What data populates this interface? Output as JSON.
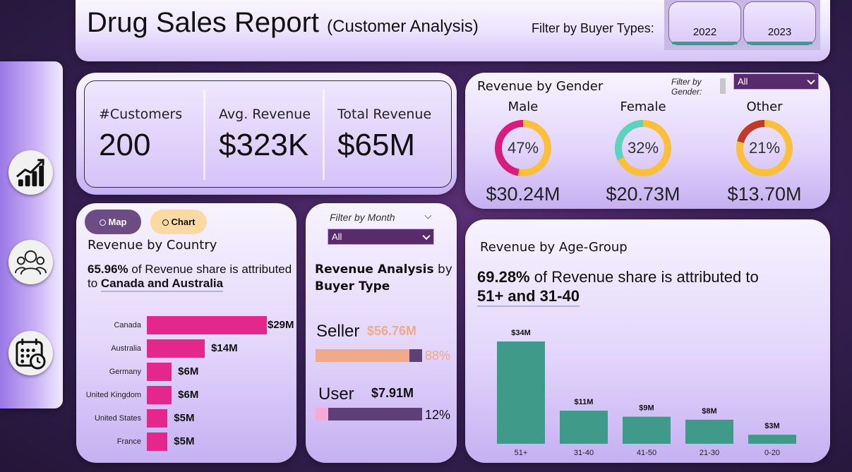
{
  "header": {
    "title": "Drug Sales Report",
    "subtitle": "(Customer Analysis)",
    "filter_label": "Filter by Buyer Types:",
    "year_buttons": [
      "2022",
      "2023"
    ]
  },
  "sidebar": {
    "items": [
      {
        "icon": "growth-chart-icon"
      },
      {
        "icon": "customers-group-icon"
      },
      {
        "icon": "calendar-clock-icon"
      }
    ]
  },
  "kpis": [
    {
      "label": "#Customers",
      "value": "200"
    },
    {
      "label": "Avg. Revenue",
      "value": "$323K"
    },
    {
      "label": "Total Revenue",
      "value": "$65M"
    }
  ],
  "gender": {
    "title": "Revenue by Gender",
    "filter_label": "Filter by Gender:",
    "filter_value": "All",
    "items": [
      {
        "name": "Male",
        "pct_label": "47%",
        "pct": 47,
        "amount": "$30.24M",
        "color": "#d81b7f",
        "rest": "#fbbf3c"
      },
      {
        "name": "Female",
        "pct_label": "32%",
        "pct": 32,
        "amount": "$20.73M",
        "color": "#5fd1c0",
        "rest": "#fbbf3c"
      },
      {
        "name": "Other",
        "pct_label": "21%",
        "pct": 21,
        "amount": "$13.70M",
        "color": "#c0392b",
        "rest": "#fbbf3c"
      }
    ]
  },
  "country": {
    "map_label": "Map",
    "chart_label": "Chart",
    "title": "Revenue by Country",
    "share_pct": "65.96%",
    "share_text": " of Revenue share is attributed to ",
    "share_countries": "Canada and Australia",
    "bar_color": "#e3278c"
  },
  "buyer": {
    "month_label": "Filter by Month",
    "month_value": "All",
    "title_bold": "Revenue Analysis",
    "title_rest": " by",
    "title_bold2": "Buyer Type",
    "types": [
      {
        "name": "Seller",
        "amount": "$56.76M",
        "pct_label": "88%",
        "pct": 88,
        "fill": "#f0a98a",
        "rest": "#5e4078"
      },
      {
        "name": "User",
        "amount": "$7.91M",
        "pct_label": "12%",
        "pct": 12,
        "fill": "#f8a8d8",
        "rest": "#5e4078"
      }
    ]
  },
  "age": {
    "title": "Revenue by Age-Group",
    "share_pct": "69.28%",
    "share_text": " of Revenue share is attributed to",
    "share_groups": "51+ and 31-40"
  },
  "chart_data": [
    {
      "type": "bar",
      "orientation": "horizontal",
      "title": "Revenue by Country",
      "categories": [
        "Canada",
        "Australia",
        "Germany",
        "United Kingdom",
        "United States",
        "France"
      ],
      "values": [
        29,
        14,
        6,
        6,
        5,
        5
      ],
      "labels": [
        "$29M",
        "$14M",
        "$6M",
        "$6M",
        "$5M",
        "$5M"
      ],
      "units": "$M"
    },
    {
      "type": "bar",
      "title": "Revenue by Age-Group",
      "categories": [
        "51+",
        "31-40",
        "41-50",
        "21-30",
        "0-20"
      ],
      "values": [
        34,
        11,
        9,
        8,
        3
      ],
      "labels": [
        "$34M",
        "$11M",
        "$9M",
        "$8M",
        "$3M"
      ],
      "units": "$M",
      "color": "#3f9a89"
    }
  ]
}
